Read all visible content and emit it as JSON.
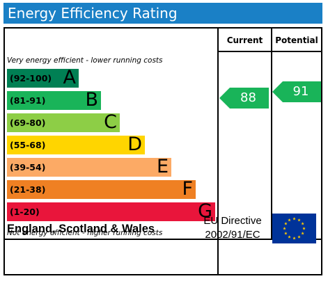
{
  "title": "Energy Efficiency Rating",
  "columns": {
    "current": "Current",
    "potential": "Potential"
  },
  "top_note": "Very energy efficient - lower running costs",
  "bottom_note": "Not energy efficient - higher running costs",
  "bands": [
    {
      "range": "(92-100)",
      "letter": "A",
      "color": "#008054"
    },
    {
      "range": "(81-91)",
      "letter": "B",
      "color": "#19b459"
    },
    {
      "range": "(69-80)",
      "letter": "C",
      "color": "#8dce46"
    },
    {
      "range": "(55-68)",
      "letter": "D",
      "color": "#ffd500"
    },
    {
      "range": "(39-54)",
      "letter": "E",
      "color": "#fcaa65"
    },
    {
      "range": "(21-38)",
      "letter": "F",
      "color": "#ef8023"
    },
    {
      "range": "(1-20)",
      "letter": "G",
      "color": "#e9153b"
    }
  ],
  "current": {
    "value": "88",
    "band": "B",
    "color": "#19b459"
  },
  "potential": {
    "value": "91",
    "band": "B",
    "color": "#19b459"
  },
  "footer": {
    "region": "England, Scotland & Wales",
    "directive_line1": "EU Directive",
    "directive_line2": "2002/91/EC"
  },
  "flag": {
    "icon": "eu-flag-icon",
    "background": "#003399",
    "star_color": "#ffcc00"
  }
}
